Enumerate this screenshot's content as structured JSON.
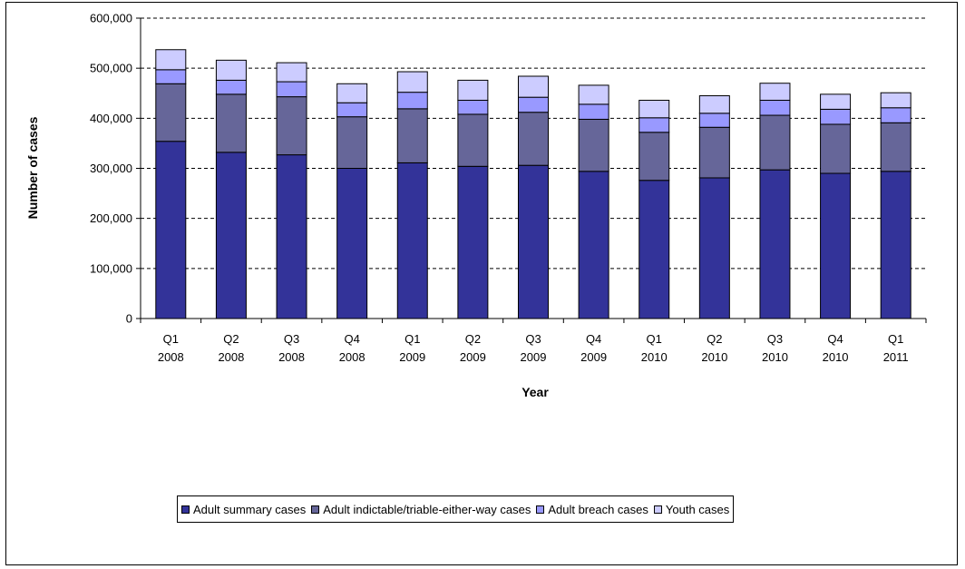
{
  "chart_data": {
    "type": "bar",
    "stacked": true,
    "xlabel": "Year",
    "ylabel": "Number of cases",
    "ylim": [
      0,
      600000
    ],
    "ytick_step": 100000,
    "yticks": [
      "0",
      "100,000",
      "200,000",
      "300,000",
      "400,000",
      "500,000",
      "600,000"
    ],
    "grid": "dashed horizontal",
    "legend_position": "bottom",
    "categories": [
      [
        "Q1",
        "2008"
      ],
      [
        "Q2",
        "2008"
      ],
      [
        "Q3",
        "2008"
      ],
      [
        "Q4",
        "2008"
      ],
      [
        "Q1",
        "2009"
      ],
      [
        "Q2",
        "2009"
      ],
      [
        "Q3",
        "2009"
      ],
      [
        "Q4",
        "2009"
      ],
      [
        "Q1",
        "2010"
      ],
      [
        "Q2",
        "2010"
      ],
      [
        "Q3",
        "2010"
      ],
      [
        "Q4",
        "2010"
      ],
      [
        "Q1",
        "2011"
      ]
    ],
    "series": [
      {
        "name": "Adult summary cases",
        "color": "#333399",
        "values": [
          354000,
          332000,
          327000,
          300000,
          311000,
          304000,
          306000,
          294000,
          276000,
          281000,
          297000,
          290000,
          294000
        ]
      },
      {
        "name": "Adult indictable/triable-either-way cases",
        "color": "#666699",
        "values": [
          115000,
          116000,
          116000,
          103000,
          108000,
          104000,
          106000,
          104000,
          96000,
          101000,
          109000,
          98000,
          97000
        ]
      },
      {
        "name": "Adult breach cases",
        "color": "#9999ff",
        "values": [
          28000,
          28000,
          30000,
          28000,
          33000,
          28000,
          30000,
          30000,
          29000,
          28000,
          30000,
          30000,
          30000
        ]
      },
      {
        "name": "Youth cases",
        "color": "#ccccff",
        "values": [
          40000,
          40000,
          38000,
          38000,
          41000,
          40000,
          42000,
          38000,
          35000,
          35000,
          34000,
          30000,
          30000
        ]
      }
    ]
  }
}
